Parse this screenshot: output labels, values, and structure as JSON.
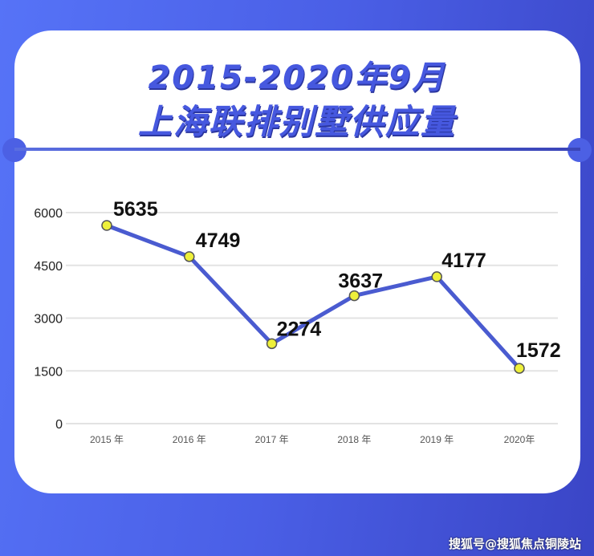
{
  "title_line1": "2015-2020年9月",
  "title_line2": "上海联排别墅供应量",
  "watermark": "搜狐号@搜狐焦点铜陵站",
  "colors": {
    "line": "#4a5bd0",
    "marker": "#eef03a",
    "background": "#4a5fe6"
  },
  "chart_data": {
    "type": "line",
    "categories": [
      "2015 年",
      "2016 年",
      "2017 年",
      "2018 年",
      "2019 年",
      "2020年"
    ],
    "values": [
      5635,
      4749,
      2274,
      3637,
      4177,
      1572
    ],
    "data_labels": [
      "5635",
      "4749",
      "2274",
      "3637",
      "4177",
      "1572"
    ],
    "yticks": [
      0,
      1500,
      3000,
      4500,
      6000
    ],
    "ytick_labels": [
      "0",
      "1500",
      "3000",
      "4500",
      "6000"
    ],
    "ylim": [
      0,
      6000
    ],
    "grid": true,
    "legend": "none"
  }
}
